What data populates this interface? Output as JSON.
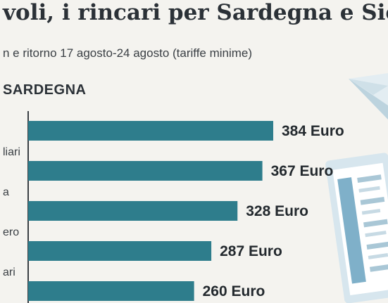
{
  "header": {
    "title": "voli, i rincari per Sardegna e Sic",
    "subtitle": "n e ritorno 17 agosto-24 agosto (tariffe minime)",
    "section": "SARDEGNA"
  },
  "colors": {
    "bar": "#2e7d8c",
    "axis": "#3a3f44"
  },
  "chart_data": {
    "type": "bar",
    "orientation": "horizontal",
    "categories": [
      "",
      "liari",
      "a",
      "ero",
      "ari"
    ],
    "values": [
      384,
      367,
      328,
      287,
      260
    ],
    "value_labels": [
      "384 Euro",
      "367 Euro",
      "328 Euro",
      "287 Euro",
      "260 Euro"
    ],
    "xlim": [
      0,
      384
    ]
  }
}
